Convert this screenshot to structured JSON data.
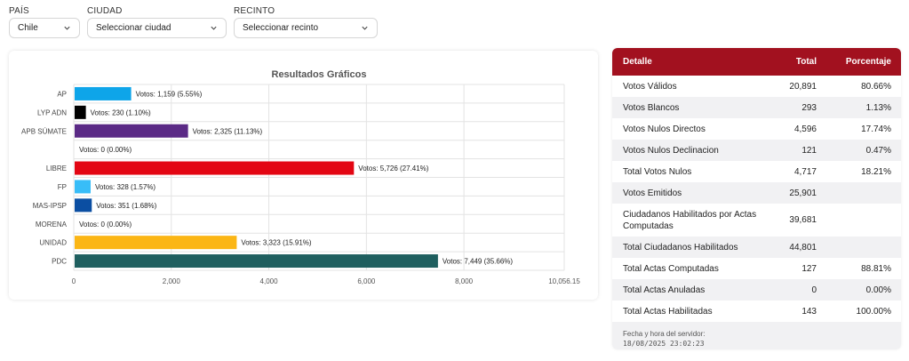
{
  "filters": [
    {
      "label": "PAÍS",
      "value": "Chile"
    },
    {
      "label": "CIUDAD",
      "value": "Seleccionar ciudad"
    },
    {
      "label": "RECINTO",
      "value": "Seleccionar recinto"
    }
  ],
  "chart_data": {
    "type": "bar",
    "orientation": "horizontal",
    "title": "Resultados Gráficos",
    "categories": [
      "AP",
      "LYP ADN",
      "APB SÚMATE",
      "",
      "LIBRE",
      "FP",
      "MAS-IPSP",
      "MORENA",
      "UNIDAD",
      "PDC"
    ],
    "values": [
      1159,
      230,
      2325,
      0,
      5726,
      328,
      351,
      0,
      3323,
      7449
    ],
    "data_labels": [
      "Votos: 1,159 (5.55%)",
      "Votos: 230 (1.10%)",
      "Votos: 2,325 (11.13%)",
      "Votos: 0 (0.00%)",
      "Votos: 5,726 (27.41%)",
      "Votos: 328 (1.57%)",
      "Votos: 351 (1.68%)",
      "Votos: 0 (0.00%)",
      "Votos: 3,323 (15.91%)",
      "Votos: 7,449 (35.66%)"
    ],
    "colors": [
      "#0ea5e9",
      "#000000",
      "#5b2a86",
      "#ffffff",
      "#e30613",
      "#38bdf8",
      "#0b4ea2",
      "#ffffff",
      "#fbb615",
      "#1f5f5f"
    ],
    "xlim": [
      0,
      10056.15
    ],
    "xticks": [
      "0",
      "2,000",
      "4,000",
      "6,000",
      "8,000",
      "10,056.15"
    ],
    "xtick_values": [
      0,
      2000,
      4000,
      6000,
      8000,
      10056.15
    ],
    "grid": true,
    "legend": "none"
  },
  "table": {
    "headers": [
      "Detalle",
      "Total",
      "Porcentaje"
    ],
    "rows": [
      {
        "detalle": "Votos Válidos",
        "total": "20,891",
        "pct": "80.66%"
      },
      {
        "detalle": "Votos Blancos",
        "total": "293",
        "pct": "1.13%"
      },
      {
        "detalle": "Votos Nulos Directos",
        "total": "4,596",
        "pct": "17.74%"
      },
      {
        "detalle": "Votos Nulos Declinacion",
        "total": "121",
        "pct": "0.47%"
      },
      {
        "detalle": "Total Votos Nulos",
        "total": "4,717",
        "pct": "18.21%"
      },
      {
        "detalle": "Votos Emitidos",
        "total": "25,901",
        "pct": ""
      },
      {
        "detalle": "Ciudadanos Habilitados por Actas Computadas",
        "total": "39,681",
        "pct": ""
      },
      {
        "detalle": "Total Ciudadanos Habilitados",
        "total": "44,801",
        "pct": ""
      },
      {
        "detalle": "Total Actas Computadas",
        "total": "127",
        "pct": "88.81%"
      },
      {
        "detalle": "Total Actas Anuladas",
        "total": "0",
        "pct": "0.00%"
      },
      {
        "detalle": "Total Actas Habilitadas",
        "total": "143",
        "pct": "100.00%"
      }
    ],
    "footer_label": "Fecha y hora del servidor:",
    "footer_timestamp": "18/08/2025 23:02:23"
  },
  "colors": {
    "header_bg": "#a2111f",
    "row_alt_bg": "#f1f1f3"
  }
}
